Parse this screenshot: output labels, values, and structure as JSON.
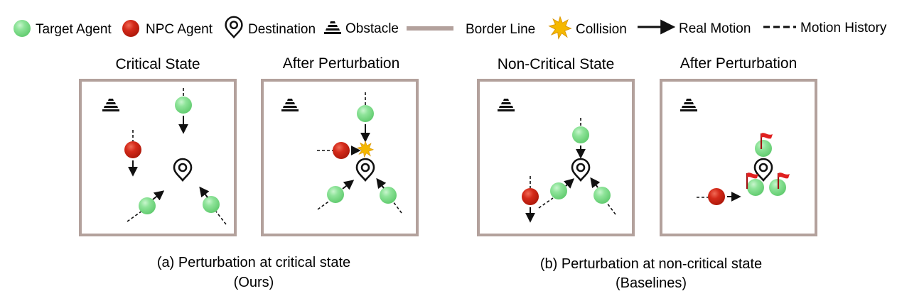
{
  "legend": {
    "target_agent": "Target Agent",
    "npc_agent": "NPC Agent",
    "destination": "Destination",
    "obstacle": "Obstacle",
    "border_line": "Border Line",
    "collision": "Collision",
    "real_motion": "Real Motion",
    "motion_history": "Motion History"
  },
  "panels": [
    {
      "title": "Critical State"
    },
    {
      "title": "After Perturbation"
    },
    {
      "title": "Non-Critical State"
    },
    {
      "title": "After Perturbation"
    }
  ],
  "captions": {
    "a_line1": "(a) Perturbation at critical state",
    "a_line2": "(Ours)",
    "b_line1": "(b) Perturbation at non-critical state",
    "b_line2": "(Baselines)"
  },
  "colors": {
    "target_agent": "#7fe08a",
    "npc_agent": "#d42a1a",
    "border": "#b3a19c",
    "collision": "#f5b800",
    "flag": "#e02020"
  }
}
